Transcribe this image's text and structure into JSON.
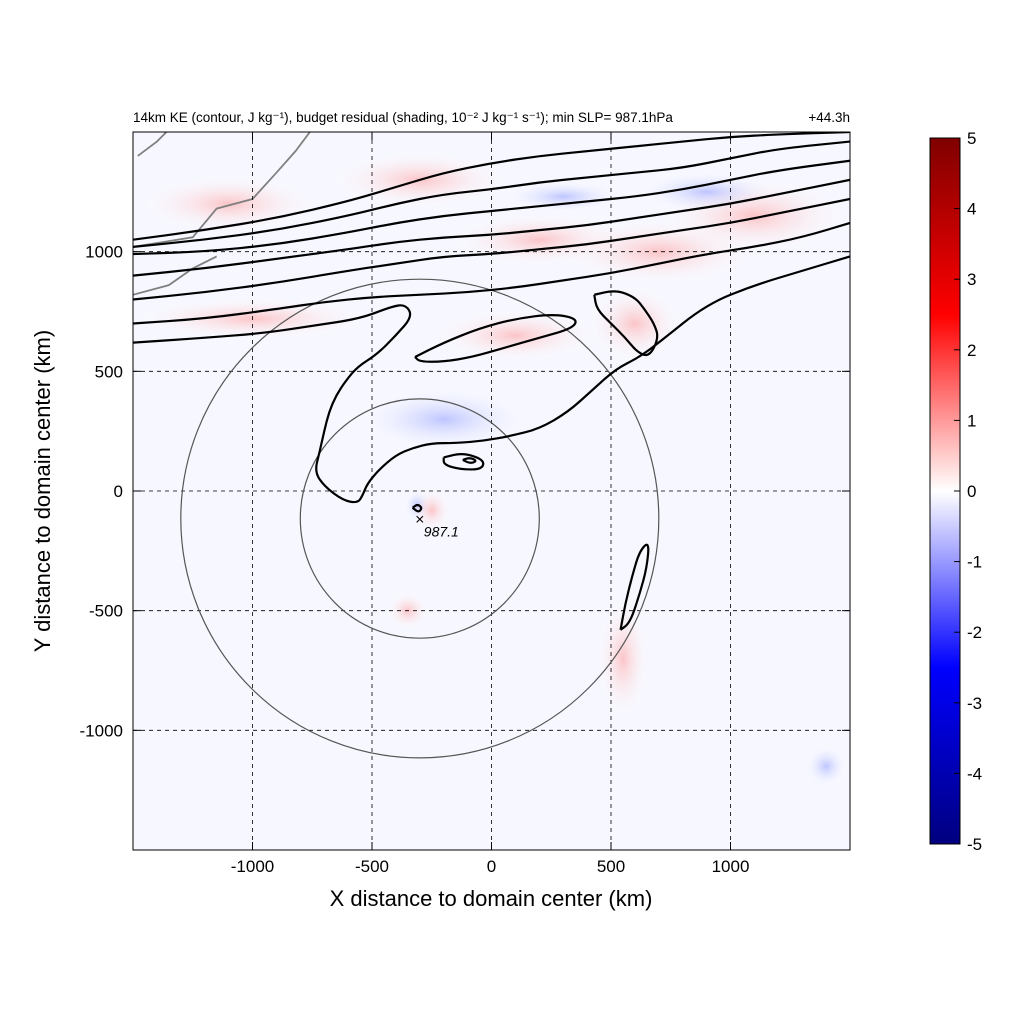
{
  "chart_data": {
    "type": "heatmap",
    "title": "14km KE (contour, J kg⁻¹), budget residual (shading, 10⁻² J kg⁻¹ s⁻¹); min SLP= 987.1hPa",
    "time_label": "+44.3h",
    "xlabel": "X distance to domain center (km)",
    "ylabel": "Y distance to domain center (km)",
    "xlim": [
      -1500,
      1500
    ],
    "ylim": [
      -1500,
      1500
    ],
    "xticks": [
      -1000,
      -500,
      0,
      500,
      1000
    ],
    "yticks": [
      -1000,
      -500,
      0,
      500,
      1000
    ],
    "xtick_labels": [
      "-1000",
      "-500",
      "0",
      "500",
      "1000"
    ],
    "ytick_labels": [
      "-1000",
      "-500",
      "0",
      "500",
      "1000"
    ],
    "grid": true,
    "colorbar": {
      "min": -5,
      "max": 5,
      "ticks": [
        5,
        4,
        3,
        2,
        1,
        0,
        -1,
        -2,
        -3,
        -4,
        -5
      ],
      "tick_labels": [
        "5",
        "4",
        "3",
        "2",
        "1",
        "0",
        "-1",
        "-2",
        "-3",
        "-4",
        "-5"
      ],
      "colormap": [
        "#00007f",
        "#0000ff",
        "#ffffff",
        "#ff0000",
        "#7f0000"
      ]
    },
    "storm_center": {
      "x": -300,
      "y": -115,
      "marker": "×",
      "label": "987.1"
    },
    "range_rings_km": [
      500,
      1000
    ],
    "contours": [
      {
        "name": "jet-1",
        "points": [
          [
            -1500,
            1050
          ],
          [
            -1200,
            1090
          ],
          [
            -900,
            1140
          ],
          [
            -600,
            1210
          ],
          [
            -400,
            1270
          ],
          [
            -200,
            1330
          ],
          [
            0,
            1370
          ],
          [
            200,
            1400
          ],
          [
            400,
            1420
          ],
          [
            600,
            1440
          ],
          [
            800,
            1460
          ],
          [
            1000,
            1480
          ],
          [
            1200,
            1490
          ],
          [
            1500,
            1500
          ]
        ]
      },
      {
        "name": "jet-2",
        "points": [
          [
            -1500,
            1020
          ],
          [
            -1200,
            1050
          ],
          [
            -900,
            1090
          ],
          [
            -600,
            1150
          ],
          [
            -400,
            1200
          ],
          [
            -200,
            1240
          ],
          [
            0,
            1260
          ],
          [
            200,
            1290
          ],
          [
            400,
            1310
          ],
          [
            600,
            1330
          ],
          [
            800,
            1350
          ],
          [
            1000,
            1390
          ],
          [
            1200,
            1430
          ],
          [
            1500,
            1460
          ]
        ]
      },
      {
        "name": "jet-3",
        "points": [
          [
            -1500,
            990
          ],
          [
            -1200,
            1000
          ],
          [
            -900,
            1030
          ],
          [
            -600,
            1080
          ],
          [
            -400,
            1120
          ],
          [
            -200,
            1150
          ],
          [
            0,
            1170
          ],
          [
            200,
            1190
          ],
          [
            400,
            1210
          ],
          [
            600,
            1230
          ],
          [
            800,
            1260
          ],
          [
            1000,
            1300
          ],
          [
            1200,
            1340
          ],
          [
            1500,
            1380
          ]
        ]
      },
      {
        "name": "jet-4",
        "points": [
          [
            -1500,
            900
          ],
          [
            -1200,
            930
          ],
          [
            -900,
            970
          ],
          [
            -600,
            1010
          ],
          [
            -400,
            1040
          ],
          [
            -200,
            1060
          ],
          [
            0,
            1070
          ],
          [
            200,
            1090
          ],
          [
            400,
            1110
          ],
          [
            600,
            1140
          ],
          [
            800,
            1170
          ],
          [
            1000,
            1200
          ],
          [
            1200,
            1240
          ],
          [
            1500,
            1300
          ]
        ]
      },
      {
        "name": "jet-5",
        "points": [
          [
            -1500,
            800
          ],
          [
            -1200,
            830
          ],
          [
            -900,
            870
          ],
          [
            -600,
            920
          ],
          [
            -400,
            950
          ],
          [
            -200,
            980
          ],
          [
            0,
            990
          ],
          [
            200,
            1010
          ],
          [
            400,
            1030
          ],
          [
            600,
            1060
          ],
          [
            800,
            1090
          ],
          [
            1000,
            1120
          ],
          [
            1200,
            1160
          ],
          [
            1500,
            1220
          ]
        ]
      },
      {
        "name": "jet-6",
        "points": [
          [
            -1500,
            700
          ],
          [
            -1200,
            720
          ],
          [
            -900,
            760
          ],
          [
            -700,
            790
          ],
          [
            -500,
            810
          ],
          [
            -300,
            820
          ],
          [
            -100,
            830
          ],
          [
            100,
            850
          ],
          [
            300,
            880
          ],
          [
            500,
            910
          ],
          [
            700,
            950
          ],
          [
            900,
            990
          ],
          [
            1100,
            1020
          ],
          [
            1300,
            1060
          ],
          [
            1500,
            1120
          ]
        ]
      },
      {
        "name": "trough-outer",
        "points": [
          [
            -1500,
            620
          ],
          [
            -1200,
            640
          ],
          [
            -950,
            660
          ],
          [
            -750,
            690
          ],
          [
            -550,
            720
          ],
          [
            -420,
            770
          ],
          [
            -360,
            780
          ],
          [
            -330,
            730
          ],
          [
            -400,
            650
          ],
          [
            -480,
            570
          ],
          [
            -560,
            520
          ],
          [
            -610,
            460
          ],
          [
            -650,
            400
          ],
          [
            -680,
            330
          ],
          [
            -700,
            250
          ],
          [
            -720,
            160
          ],
          [
            -740,
            80
          ],
          [
            -700,
            20
          ],
          [
            -620,
            -40
          ],
          [
            -560,
            -50
          ],
          [
            -540,
            -20
          ],
          [
            -520,
            30
          ],
          [
            -470,
            90
          ],
          [
            -400,
            150
          ],
          [
            -330,
            180
          ],
          [
            -250,
            200
          ],
          [
            -150,
            200
          ],
          [
            -30,
            210
          ],
          [
            80,
            230
          ],
          [
            200,
            260
          ],
          [
            320,
            330
          ],
          [
            420,
            420
          ],
          [
            520,
            510
          ],
          [
            620,
            560
          ],
          [
            700,
            620
          ],
          [
            900,
            780
          ],
          [
            1100,
            860
          ],
          [
            1300,
            920
          ],
          [
            1500,
            980
          ]
        ]
      },
      {
        "name": "trough-loop",
        "points": [
          [
            -320,
            560
          ],
          [
            -200,
            620
          ],
          [
            -50,
            680
          ],
          [
            100,
            720
          ],
          [
            260,
            740
          ],
          [
            360,
            720
          ],
          [
            340,
            680
          ],
          [
            200,
            640
          ],
          [
            60,
            600
          ],
          [
            -80,
            560
          ],
          [
            -200,
            540
          ],
          [
            -300,
            540
          ],
          [
            -320,
            560
          ]
        ]
      },
      {
        "name": "east-blob",
        "points": [
          [
            430,
            820
          ],
          [
            520,
            840
          ],
          [
            600,
            810
          ],
          [
            640,
            760
          ],
          [
            680,
            700
          ],
          [
            700,
            640
          ],
          [
            660,
            560
          ],
          [
            610,
            580
          ],
          [
            560,
            640
          ],
          [
            500,
            700
          ],
          [
            440,
            760
          ],
          [
            430,
            820
          ]
        ]
      },
      {
        "name": "small-ring-1",
        "points": [
          [
            -200,
            140
          ],
          [
            -120,
            160
          ],
          [
            -30,
            130
          ],
          [
            -40,
            90
          ],
          [
            -130,
            90
          ],
          [
            -200,
            110
          ],
          [
            -200,
            140
          ]
        ]
      },
      {
        "name": "small-ring-2",
        "points": [
          [
            -120,
            130
          ],
          [
            -90,
            140
          ],
          [
            -60,
            125
          ],
          [
            -90,
            115
          ],
          [
            -120,
            130
          ]
        ]
      },
      {
        "name": "core-ring",
        "points": [
          [
            -330,
            -70
          ],
          [
            -310,
            -55
          ],
          [
            -290,
            -70
          ],
          [
            -305,
            -90
          ],
          [
            -330,
            -70
          ]
        ]
      },
      {
        "name": "southeast-band",
        "points": [
          [
            540,
            -580
          ],
          [
            560,
            -470
          ],
          [
            590,
            -350
          ],
          [
            620,
            -250
          ],
          [
            660,
            -210
          ],
          [
            650,
            -320
          ],
          [
            620,
            -430
          ],
          [
            580,
            -550
          ],
          [
            540,
            -580
          ]
        ]
      }
    ],
    "coastline_color": "#808080",
    "contour_color": "#000000"
  }
}
